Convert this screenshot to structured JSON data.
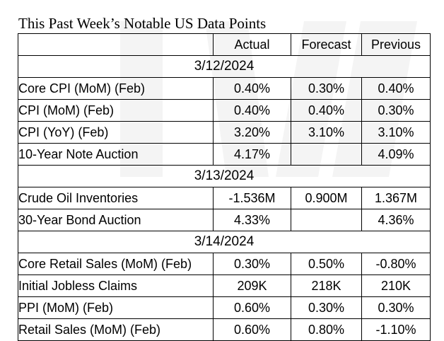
{
  "title": "This Past Week’s Notable US Data Points",
  "headers": {
    "indicator": "",
    "actual": "Actual",
    "forecast": "Forecast",
    "previous": "Previous"
  },
  "sections": [
    {
      "date": "3/12/2024",
      "rows": [
        {
          "indicator": "Core CPI (MoM) (Feb)",
          "actual": "0.40%",
          "forecast": "0.30%",
          "previous": "0.40%"
        },
        {
          "indicator": "CPI (MoM) (Feb)",
          "actual": "0.40%",
          "forecast": "0.40%",
          "previous": "0.30%"
        },
        {
          "indicator": "CPI (YoY) (Feb)",
          "actual": "3.20%",
          "forecast": "3.10%",
          "previous": "3.10%"
        },
        {
          "indicator": "10-Year Note Auction",
          "actual": "4.17%",
          "forecast": "",
          "previous": "4.09%"
        }
      ]
    },
    {
      "date": "3/13/2024",
      "rows": [
        {
          "indicator": "Crude Oil Inventories",
          "actual": "-1.536M",
          "forecast": "0.900M",
          "previous": "1.367M"
        },
        {
          "indicator": "30-Year Bond Auction",
          "actual": "4.33%",
          "forecast": "",
          "previous": "4.36%"
        }
      ]
    },
    {
      "date": "3/14/2024",
      "rows": [
        {
          "indicator": "Core Retail Sales (MoM) (Feb)",
          "actual": "0.30%",
          "forecast": "0.50%",
          "previous": "-0.80%"
        },
        {
          "indicator": "Initial Jobless Claims",
          "actual": "209K",
          "forecast": "218K",
          "previous": "210K"
        },
        {
          "indicator": "PPI (MoM) (Feb)",
          "actual": "0.60%",
          "forecast": "0.30%",
          "previous": "0.30%"
        },
        {
          "indicator": "Retail Sales (MoM) (Feb)",
          "actual": "0.60%",
          "forecast": "0.80%",
          "previous": "-1.10%"
        }
      ]
    }
  ],
  "colors": {
    "text": "#000000",
    "border": "#000000",
    "background": "#ffffff",
    "watermark": "#f4f4f4"
  }
}
